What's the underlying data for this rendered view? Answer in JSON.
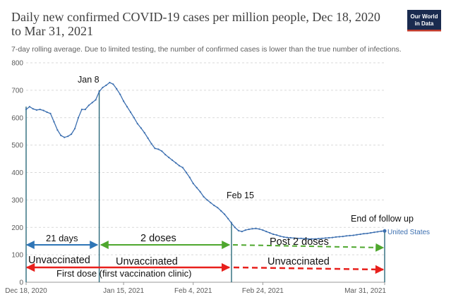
{
  "chart_data": {
    "type": "line",
    "title_lines": [
      "Daily new confirmed COVID-19 cases per million people, Dec 18, 2020",
      "to Mar 31, 2021"
    ],
    "subtitle": "7-day rolling average. Due to limited testing, the number of confirmed cases is lower than the true number of infections.",
    "logo_lines": [
      "Our World",
      "in Data"
    ],
    "series_name": "United States",
    "colors": {
      "line": "#3c6fb0",
      "vline": "#2b6a7a",
      "blue": "#2e75b6",
      "green": "#4ea72e",
      "red": "#e8201c",
      "grid": "#d9d9d9",
      "logo_bg": "#1a2b4f",
      "logo_accent": "#c0392b"
    },
    "ylim": [
      0,
      800
    ],
    "yticks": [
      0,
      100,
      200,
      300,
      400,
      500,
      600,
      700,
      800
    ],
    "xlim": [
      0,
      103
    ],
    "xticks": [
      {
        "day": 0,
        "label": "Dec 18, 2020"
      },
      {
        "day": 28,
        "label": "Jan 15, 2021"
      },
      {
        "day": 48,
        "label": "Feb 4, 2021"
      },
      {
        "day": 68,
        "label": "Feb 24, 2021"
      },
      {
        "day": 103,
        "label": "Mar 31, 2021"
      }
    ],
    "x_day_offset_from_dec18": 0,
    "values": [
      630,
      640,
      632,
      628,
      630,
      626,
      620,
      615,
      585,
      555,
      535,
      528,
      532,
      540,
      560,
      600,
      630,
      630,
      645,
      655,
      665,
      695,
      710,
      718,
      728,
      722,
      705,
      685,
      660,
      640,
      620,
      600,
      578,
      562,
      545,
      525,
      505,
      488,
      485,
      478,
      465,
      455,
      445,
      435,
      425,
      418,
      400,
      382,
      360,
      345,
      330,
      312,
      300,
      290,
      280,
      272,
      260,
      248,
      232,
      215,
      200,
      188,
      185,
      190,
      193,
      195,
      196,
      194,
      190,
      185,
      180,
      175,
      172,
      168,
      165,
      163,
      162,
      161,
      160,
      160,
      159,
      158,
      158,
      158,
      159,
      160,
      161,
      162,
      163,
      165,
      166,
      167,
      169,
      170,
      171,
      173,
      175,
      177,
      178,
      180,
      182,
      184,
      186,
      187
    ],
    "markers": [
      {
        "day": 0,
        "label": ""
      },
      {
        "day": 21,
        "label": "Jan 8"
      },
      {
        "day": 59,
        "label": "Feb 15"
      },
      {
        "day": 103,
        "label": "End of follow up"
      }
    ],
    "annotations": {
      "days21": "21 days",
      "doses2": "2 doses",
      "post2": "Post 2 doses",
      "unvacc1": "Unvaccinated",
      "unvacc2": "Unvaccinated",
      "unvacc3": "Unvaccinated",
      "first_dose": "First dose (first vaccination clinic)"
    }
  }
}
